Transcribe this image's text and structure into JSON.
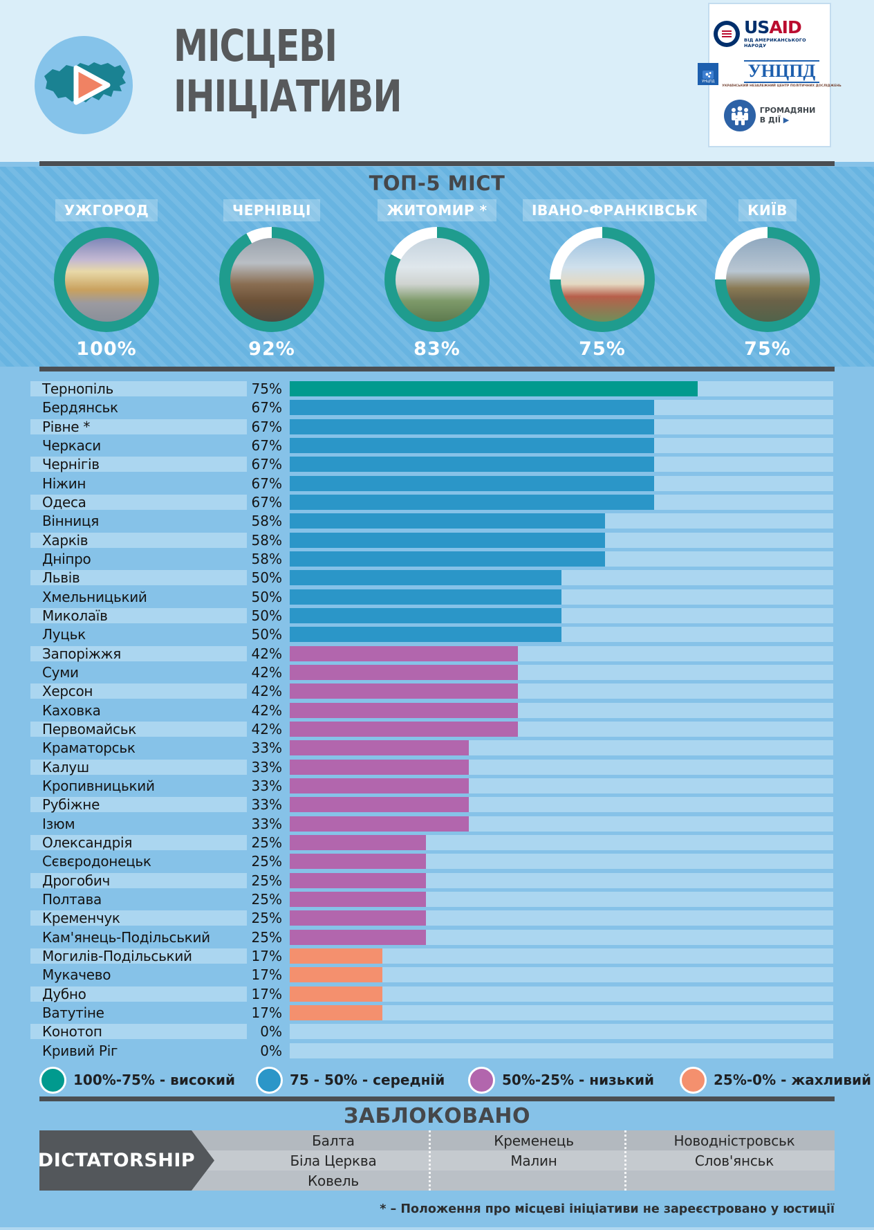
{
  "header": {
    "title_line1": "МІСЦЕВІ",
    "title_line2": "ІНІЦІАТИВИ",
    "logos": {
      "usaid": {
        "part1": "US",
        "part2": "AID",
        "tagline": "ВІД АМЕРИКАНСЬКОГО НАРОДУ"
      },
      "uncpd": {
        "wordmark": "УНЦПД",
        "tagline": "УКРАЇНСЬКИЙ НЕЗАЛЕЖНИЙ ЦЕНТР ПОЛІТИЧНИХ ДОСЛІДЖЕНЬ"
      },
      "citizens": {
        "line1": "ГРОМАДЯНИ",
        "line2": "В ДІЇ",
        "arrow": "▶"
      }
    }
  },
  "top5": {
    "heading": "ТОП-5 МІСТ",
    "cities": [
      {
        "name": "УЖГОРОД",
        "value": 100,
        "value_label": "100%"
      },
      {
        "name": "ЧЕРНІВЦІ",
        "value": 92,
        "value_label": "92%"
      },
      {
        "name": "ЖИТОМИР *",
        "value": 83,
        "value_label": "83%"
      },
      {
        "name": "ІВАНО-ФРАНКІВСЬК",
        "value": 75,
        "value_label": "75%"
      },
      {
        "name": "КИЇВ",
        "value": 75,
        "value_label": "75%"
      }
    ]
  },
  "chart_data": [
    {
      "type": "pie",
      "subtype": "donut-rings",
      "title": "ТОП-5 МІСТ",
      "categories": [
        "УЖГОРОД",
        "ЧЕРНІВЦІ",
        "ЖИТОМИР *",
        "ІВАНО-ФРАНКІВСЬК",
        "КИЇВ"
      ],
      "values": [
        100,
        92,
        83,
        75,
        75
      ],
      "unit": "%",
      "ring_color": "#1f9c8e",
      "gap_color": "#ffffff"
    },
    {
      "type": "bar",
      "orientation": "horizontal",
      "title": "",
      "xlabel": "",
      "ylabel": "",
      "unit": "%",
      "xlim": [
        0,
        100
      ],
      "grid": false,
      "categories": [
        "Тернопіль",
        "Бердянськ",
        "Рівне *",
        "Черкаси",
        "Чернігів",
        "Ніжин",
        "Одеса",
        "Вінниця",
        "Харків",
        "Дніпро",
        "Львів",
        "Хмельницький",
        "Миколаїв",
        "Луцьк",
        "Запоріжжя",
        "Суми",
        "Херсон",
        "Каховка",
        "Первомайськ",
        "Краматорськ",
        "Калуш",
        "Кропивницький",
        "Рубіжне",
        "Ізюм",
        "Олександрія",
        "Сєвєродонецьк",
        "Дрогобич",
        "Полтава",
        "Кременчук",
        "Кам'янець-Подільський",
        "Могилів-Подільський",
        "Мукачево",
        "Дубно",
        "Ватутіне",
        "Конотоп",
        "Кривий Ріг"
      ],
      "values": [
        75,
        67,
        67,
        67,
        67,
        67,
        67,
        58,
        58,
        58,
        50,
        50,
        50,
        50,
        42,
        42,
        42,
        42,
        42,
        33,
        33,
        33,
        33,
        33,
        25,
        25,
        25,
        25,
        25,
        25,
        17,
        17,
        17,
        17,
        0,
        0
      ],
      "color_bands": [
        {
          "min": 75,
          "max": 100,
          "color": "#019a8e",
          "label": "100%-75% - високий"
        },
        {
          "min": 50,
          "max": 74,
          "color": "#2b96c8",
          "label": "75 - 50% - середній"
        },
        {
          "min": 25,
          "max": 49,
          "color": "#b266ad",
          "label": "50%-25% - низький"
        },
        {
          "min": 1,
          "max": 24,
          "color": "#f4906e",
          "label": "25%-0% - жахливий"
        }
      ],
      "legend_position": "bottom"
    }
  ],
  "legend": {
    "items": [
      {
        "label": "100%-75% - високий",
        "color": "#019a8e"
      },
      {
        "label": "75 - 50% - середній",
        "color": "#2b96c8"
      },
      {
        "label": "50%-25% - низький",
        "color": "#b266ad"
      },
      {
        "label": "25%-0% - жахливий",
        "color": "#f4906e"
      }
    ]
  },
  "blocked": {
    "heading": "ЗАБЛОКОВАНО",
    "banner_label": "DICTATORSHIP",
    "rows": [
      [
        "Балта",
        "Кременець",
        "Новодністровськ"
      ],
      [
        "Біла Церква",
        "Малин",
        "Слов'янськ"
      ],
      [
        "Ковель",
        "",
        ""
      ]
    ]
  },
  "footnote": "* – Положення про місцеві ініціативи не зареєстровано у юстиції",
  "colors": {
    "high": "#019a8e",
    "mid": "#2b96c8",
    "low": "#b266ad",
    "awful": "#f4906e",
    "ring_teal": "#1f9c8e",
    "track": "#abd6f0",
    "top5_bg": "#68b4e1",
    "chart_bg": "#86c2e8",
    "header_bg": "#daeef9",
    "divider": "#4a4e52"
  }
}
